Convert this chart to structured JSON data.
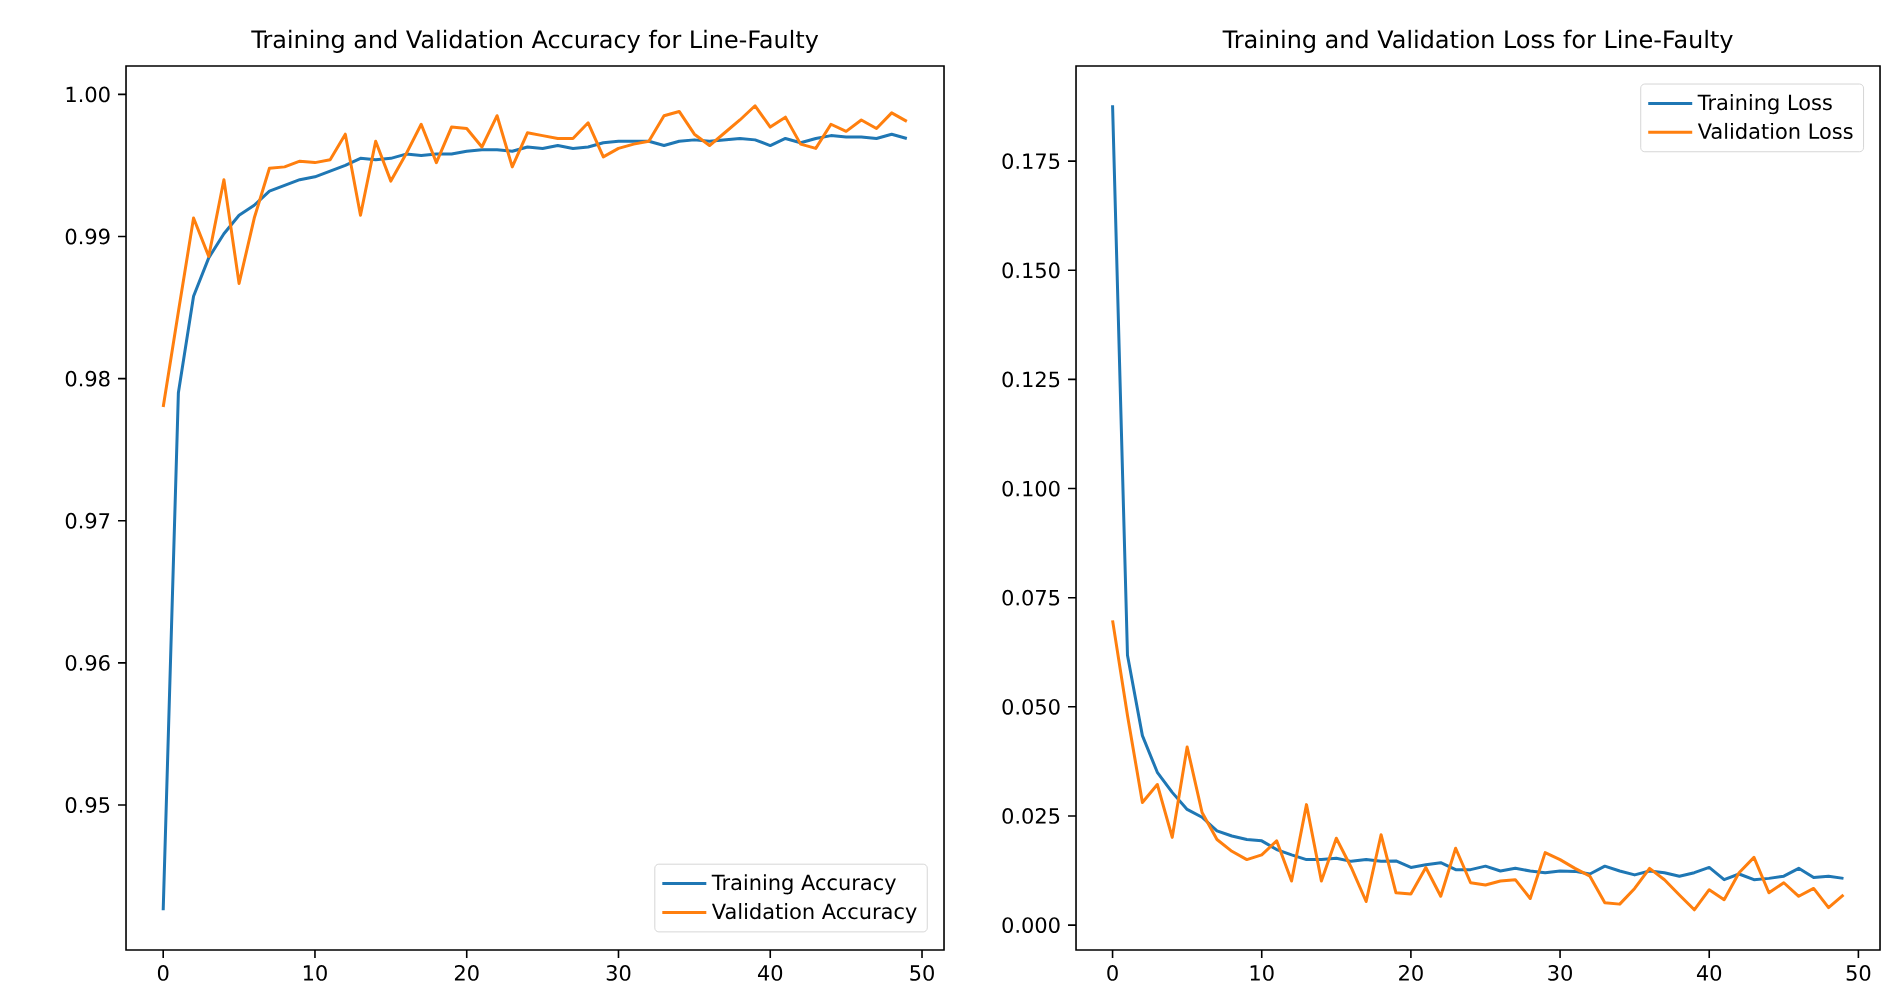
{
  "chart_data": [
    {
      "type": "line",
      "title": "Training and Validation Accuracy for Line-Faulty",
      "x": [
        0,
        1,
        2,
        3,
        4,
        5,
        6,
        7,
        8,
        9,
        10,
        11,
        12,
        13,
        14,
        15,
        16,
        17,
        18,
        19,
        20,
        21,
        22,
        23,
        24,
        25,
        26,
        27,
        28,
        29,
        30,
        31,
        32,
        33,
        34,
        35,
        36,
        37,
        38,
        39,
        40,
        41,
        42,
        43,
        44,
        45,
        46,
        47,
        48,
        49
      ],
      "series": [
        {
          "name": "Training Accuracy",
          "color": "#1f77b4",
          "values": [
            0.9426,
            0.979,
            0.9858,
            0.9885,
            0.9902,
            0.9915,
            0.9922,
            0.9932,
            0.9936,
            0.994,
            0.9942,
            0.9946,
            0.995,
            0.9955,
            0.9954,
            0.9955,
            0.9958,
            0.9957,
            0.9958,
            0.9958,
            0.996,
            0.9961,
            0.9961,
            0.996,
            0.9963,
            0.9962,
            0.9964,
            0.9962,
            0.9963,
            0.9966,
            0.9967,
            0.9967,
            0.9967,
            0.9964,
            0.9967,
            0.9968,
            0.9967,
            0.9968,
            0.9969,
            0.9968,
            0.9964,
            0.9969,
            0.9966,
            0.9969,
            0.9971,
            0.997,
            0.997,
            0.9969,
            0.9972,
            0.9969
          ]
        },
        {
          "name": "Validation Accuracy",
          "color": "#ff7f0e",
          "values": [
            0.978,
            0.9847,
            0.9913,
            0.9886,
            0.994,
            0.9867,
            0.9913,
            0.9948,
            0.9949,
            0.9953,
            0.9952,
            0.9954,
            0.9972,
            0.9915,
            0.9967,
            0.9939,
            0.9958,
            0.9979,
            0.9952,
            0.9977,
            0.9976,
            0.9963,
            0.9985,
            0.9949,
            0.9973,
            0.9971,
            0.9969,
            0.9969,
            0.998,
            0.9956,
            0.9962,
            0.9965,
            0.9967,
            0.9985,
            0.9988,
            0.9972,
            0.9964,
            0.9973,
            0.9982,
            0.9992,
            0.9977,
            0.9984,
            0.9965,
            0.9962,
            0.9979,
            0.9974,
            0.9982,
            0.9976,
            0.9987,
            0.9981
          ]
        }
      ],
      "xlim": [
        -2.45,
        51.45
      ],
      "ylim": [
        0.9398,
        1.002
      ],
      "xticks": [
        0,
        10,
        20,
        30,
        40,
        50
      ],
      "yticks": [
        0.95,
        0.96,
        0.97,
        0.98,
        0.99,
        {
          "value": 1.0,
          "label": "1.00"
        }
      ],
      "legend": "bottom right"
    },
    {
      "type": "line",
      "title": "Training and Validation Loss for Line-Faulty",
      "x": [
        0,
        1,
        2,
        3,
        4,
        5,
        6,
        7,
        8,
        9,
        10,
        11,
        12,
        13,
        14,
        15,
        16,
        17,
        18,
        19,
        20,
        21,
        22,
        23,
        24,
        25,
        26,
        27,
        28,
        29,
        30,
        31,
        32,
        33,
        34,
        35,
        36,
        37,
        38,
        39,
        40,
        41,
        42,
        43,
        44,
        45,
        46,
        47,
        48,
        49
      ],
      "series": [
        {
          "name": "Training Loss",
          "color": "#1f77b4",
          "values": [
            0.1878,
            0.0618,
            0.0434,
            0.035,
            0.0304,
            0.0265,
            0.0247,
            0.0216,
            0.0204,
            0.0196,
            0.0193,
            0.0173,
            0.0161,
            0.015,
            0.015,
            0.0153,
            0.0146,
            0.015,
            0.0146,
            0.0147,
            0.0132,
            0.0138,
            0.0143,
            0.0127,
            0.0127,
            0.0135,
            0.0124,
            0.013,
            0.0124,
            0.012,
            0.0124,
            0.0123,
            0.0117,
            0.0135,
            0.0124,
            0.0115,
            0.0124,
            0.012,
            0.0112,
            0.012,
            0.0132,
            0.0104,
            0.0117,
            0.0104,
            0.0107,
            0.0112,
            0.013,
            0.0109,
            0.0112,
            0.0107
          ]
        },
        {
          "name": "Validation Loss",
          "color": "#ff7f0e",
          "values": [
            0.0698,
            0.048,
            0.0281,
            0.0322,
            0.0201,
            0.0408,
            0.0258,
            0.0196,
            0.0169,
            0.015,
            0.0161,
            0.0193,
            0.0101,
            0.0276,
            0.0101,
            0.0199,
            0.0132,
            0.0054,
            0.0207,
            0.0074,
            0.0071,
            0.0132,
            0.0066,
            0.0176,
            0.0097,
            0.0092,
            0.0101,
            0.0104,
            0.0061,
            0.0166,
            0.015,
            0.013,
            0.0112,
            0.0051,
            0.0048,
            0.0084,
            0.013,
            0.0104,
            0.0069,
            0.0035,
            0.0081,
            0.0058,
            0.012,
            0.0155,
            0.0074,
            0.0097,
            0.0066,
            0.0084,
            0.004,
            0.0069
          ]
        }
      ],
      "xlim": [
        -2.45,
        51.45
      ],
      "ylim": [
        -0.0057,
        0.1968
      ],
      "xticks": [
        0,
        10,
        20,
        30,
        40,
        50
      ],
      "yticks": [
        {
          "value": 0.0,
          "label": "0.000"
        },
        0.025,
        {
          "value": 0.05,
          "label": "0.050"
        },
        0.075,
        {
          "value": 0.1,
          "label": "0.100"
        },
        0.125,
        {
          "value": 0.15,
          "label": "0.150"
        },
        0.175
      ],
      "legend": "top right"
    }
  ]
}
